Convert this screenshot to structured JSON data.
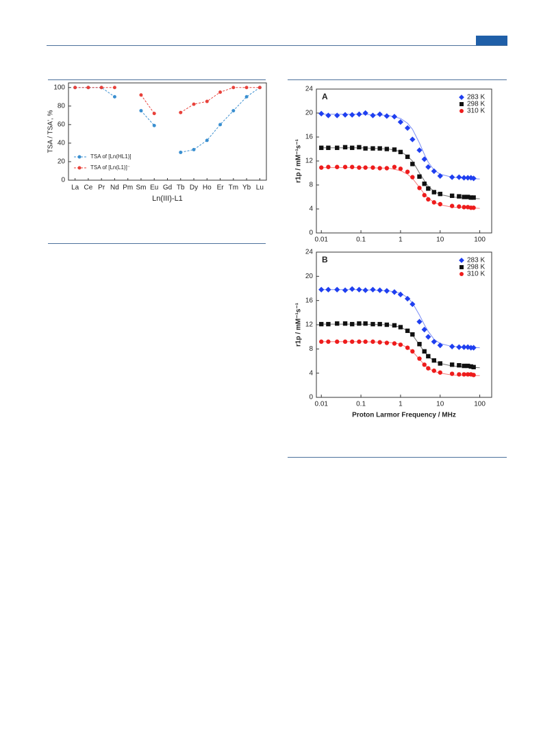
{
  "chart_data": [
    {
      "type": "line",
      "ylabel": "TSA / TSA', %",
      "xlabel": "Ln(III)-L1",
      "categories": [
        "La",
        "Ce",
        "Pr",
        "Nd",
        "Pm",
        "Sm",
        "Eu",
        "Gd",
        "Tb",
        "Dy",
        "Ho",
        "Er",
        "Tm",
        "Yb",
        "Lu"
      ],
      "series": [
        {
          "name": "TSA of [Ln(HL1)]",
          "color": "#3a8fd0",
          "marker": "circle",
          "line_style": "dashed",
          "values": [
            100,
            100,
            100,
            90,
            null,
            75,
            59,
            null,
            30,
            33,
            43,
            60,
            75,
            90,
            100
          ]
        },
        {
          "name": "TSA of [Ln(L1)]⁻",
          "color": "#e8413a",
          "marker": "circle",
          "line_style": "dashed",
          "values": [
            100,
            100,
            100,
            100,
            null,
            92,
            72,
            null,
            73,
            82,
            85,
            95,
            100,
            100,
            100
          ]
        }
      ],
      "ylim": [
        0,
        105
      ],
      "yticks": [
        0,
        20,
        40,
        60,
        80,
        100
      ],
      "legend": "lower-left"
    },
    {
      "type": "scatter",
      "panel": "A",
      "ylabel": "r1p / mM⁻¹s⁻¹",
      "log_x": true,
      "x": [
        0.01,
        0.015,
        0.025,
        0.04,
        0.06,
        0.09,
        0.13,
        0.2,
        0.3,
        0.45,
        0.7,
        1,
        1.5,
        2,
        3,
        4,
        5,
        7,
        10,
        20,
        30,
        40,
        50,
        60,
        70
      ],
      "fit_x": [
        0.01,
        0.1,
        0.5,
        1,
        1.5,
        2,
        3,
        4,
        5,
        7,
        10,
        20,
        50,
        100
      ],
      "series": [
        {
          "name": "283 K",
          "color": "#1f3ff0",
          "marker": "diamond",
          "values": [
            19.9,
            19.6,
            19.6,
            19.7,
            19.7,
            19.8,
            20.0,
            19.6,
            19.8,
            19.5,
            19.4,
            18.5,
            17.5,
            15.6,
            13.8,
            12.3,
            11.0,
            10.3,
            9.5,
            9.3,
            9.3,
            9.2,
            9.2,
            9.2,
            9.1
          ],
          "fit_values": [
            19.8,
            19.8,
            19.6,
            19.1,
            18.3,
            17.3,
            15.0,
            13.1,
            11.8,
            10.5,
            9.8,
            9.3,
            9.1,
            9.0
          ]
        },
        {
          "name": "298 K",
          "color": "#111111",
          "marker": "square",
          "values": [
            14.2,
            14.2,
            14.2,
            14.3,
            14.2,
            14.3,
            14.1,
            14.1,
            14.1,
            14.0,
            13.9,
            13.5,
            12.7,
            11.5,
            9.4,
            8.2,
            7.4,
            6.8,
            6.5,
            6.2,
            6.1,
            6.0,
            6.0,
            5.9,
            5.9
          ],
          "fit_values": [
            14.2,
            14.2,
            14.0,
            13.6,
            12.8,
            12.0,
            10.0,
            8.7,
            7.8,
            6.9,
            6.4,
            6.0,
            5.8,
            5.7
          ]
        },
        {
          "name": "310 K",
          "color": "#ee1c1c",
          "marker": "circle",
          "values": [
            10.9,
            11.0,
            11.0,
            11.0,
            11.0,
            10.9,
            10.9,
            10.9,
            10.8,
            10.8,
            11.0,
            10.7,
            10.2,
            9.3,
            7.5,
            6.3,
            5.6,
            5.1,
            4.8,
            4.5,
            4.4,
            4.3,
            4.3,
            4.2,
            4.2
          ],
          "fit_values": [
            10.9,
            10.9,
            10.8,
            10.4,
            9.8,
            9.1,
            7.6,
            6.5,
            5.8,
            5.1,
            4.7,
            4.3,
            4.2,
            4.1
          ]
        }
      ],
      "xlim": [
        0.0075,
        200
      ],
      "xticks": [
        0.01,
        0.1,
        1,
        10,
        100
      ],
      "ylim": [
        0,
        24
      ],
      "yticks": [
        0,
        4,
        8,
        12,
        16,
        20,
        24
      ],
      "legend": "upper-right"
    },
    {
      "type": "scatter",
      "panel": "B",
      "ylabel": "r1p / mM⁻¹s⁻¹",
      "xlabel": "Proton Larmor Frequency / MHz",
      "log_x": true,
      "x": [
        0.01,
        0.015,
        0.025,
        0.04,
        0.06,
        0.09,
        0.13,
        0.2,
        0.3,
        0.45,
        0.7,
        1,
        1.5,
        2,
        3,
        4,
        5,
        7,
        10,
        20,
        30,
        40,
        50,
        60,
        70
      ],
      "fit_x": [
        0.01,
        0.1,
        0.5,
        1,
        1.5,
        2,
        3,
        4,
        5,
        7,
        10,
        20,
        50,
        100
      ],
      "series": [
        {
          "name": "283 K",
          "color": "#1f3ff0",
          "marker": "diamond",
          "values": [
            17.8,
            17.8,
            17.8,
            17.7,
            17.9,
            17.8,
            17.7,
            17.8,
            17.7,
            17.6,
            17.4,
            17.0,
            16.3,
            15.4,
            12.5,
            11.2,
            10.0,
            9.2,
            8.6,
            8.4,
            8.3,
            8.3,
            8.3,
            8.2,
            8.2
          ],
          "fit_values": [
            17.8,
            17.8,
            17.6,
            17.2,
            16.5,
            15.6,
            13.6,
            12.0,
            10.9,
            9.6,
            8.9,
            8.4,
            8.3,
            8.2
          ]
        },
        {
          "name": "298 K",
          "color": "#111111",
          "marker": "square",
          "values": [
            12.1,
            12.1,
            12.2,
            12.2,
            12.1,
            12.2,
            12.2,
            12.1,
            12.1,
            12.0,
            11.9,
            11.6,
            11.0,
            10.4,
            8.8,
            7.6,
            6.8,
            6.1,
            5.6,
            5.4,
            5.3,
            5.2,
            5.2,
            5.1,
            5.0
          ],
          "fit_values": [
            12.1,
            12.1,
            12.0,
            11.6,
            11.0,
            10.3,
            8.7,
            7.5,
            6.8,
            6.0,
            5.6,
            5.2,
            5.0,
            4.9
          ]
        },
        {
          "name": "310 K",
          "color": "#ee1c1c",
          "marker": "circle",
          "values": [
            9.2,
            9.2,
            9.2,
            9.2,
            9.2,
            9.2,
            9.2,
            9.2,
            9.1,
            9.0,
            8.9,
            8.7,
            8.2,
            7.6,
            6.4,
            5.4,
            4.8,
            4.4,
            4.1,
            3.9,
            3.8,
            3.8,
            3.8,
            3.8,
            3.7
          ],
          "fit_values": [
            9.2,
            9.2,
            9.1,
            8.8,
            8.2,
            7.6,
            6.3,
            5.4,
            4.8,
            4.3,
            4.0,
            3.7,
            3.6,
            3.6
          ]
        }
      ],
      "xlim": [
        0.0075,
        200
      ],
      "xticks": [
        0.01,
        0.1,
        1,
        10,
        100
      ],
      "ylim": [
        0,
        24
      ],
      "yticks": [
        0,
        4,
        8,
        12,
        16,
        20,
        24
      ],
      "legend": "upper-right"
    }
  ]
}
